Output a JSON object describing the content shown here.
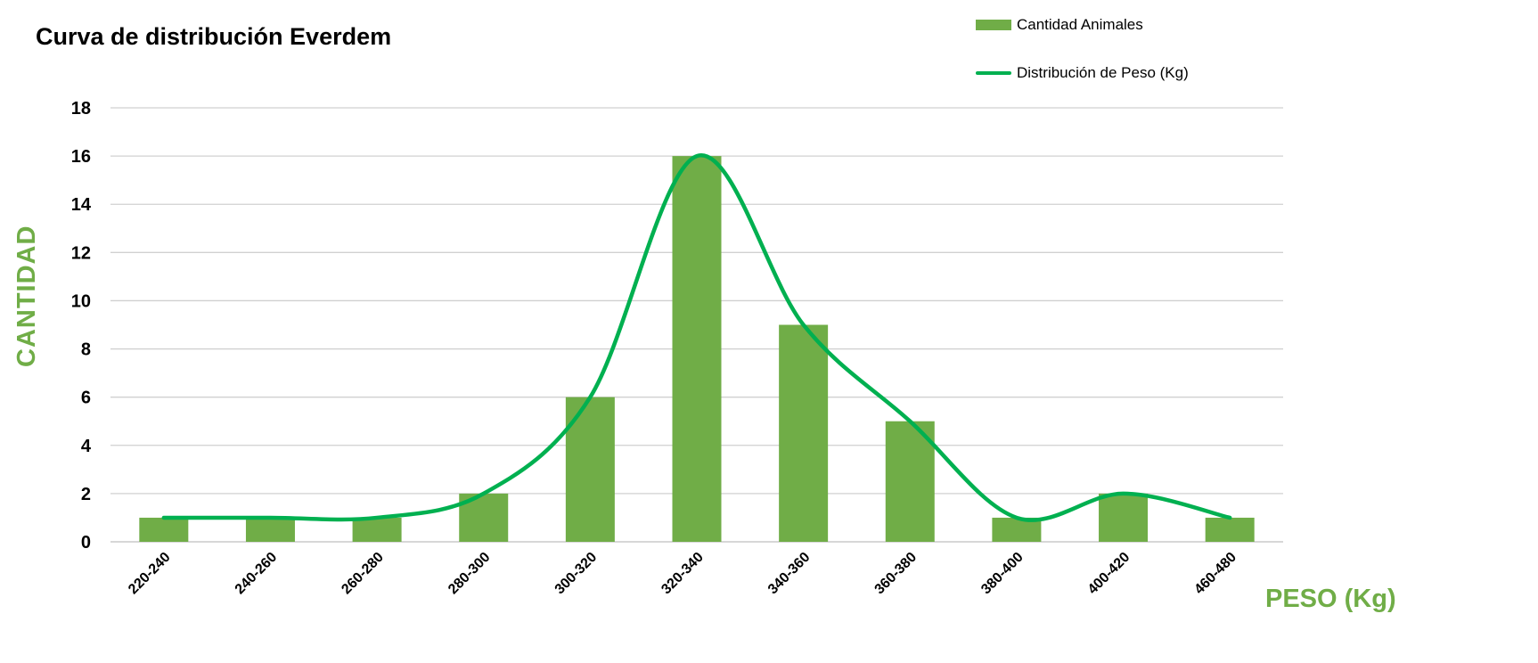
{
  "chart_data": {
    "type": "bar",
    "title": "Curva de distribución Everdem",
    "xlabel": "PESO (Kg)",
    "ylabel": "CANTIDAD",
    "categories": [
      "220-240",
      "240-260",
      "260-280",
      "280-300",
      "300-320",
      "320-340",
      "340-360",
      "360-380",
      "380-400",
      "400-420",
      "460-480"
    ],
    "series": [
      {
        "name": "Cantidad Animales",
        "type": "bar",
        "values": [
          1,
          1,
          1,
          2,
          6,
          16,
          9,
          5,
          1,
          2,
          1
        ],
        "color": "#70ad47"
      },
      {
        "name": "Distribución de Peso (Kg)",
        "type": "line",
        "smooth": true,
        "values": [
          1,
          1,
          1,
          2,
          6,
          16,
          9,
          5,
          1,
          2,
          1
        ],
        "color": "#00b050"
      }
    ],
    "ylim": [
      0,
      18
    ],
    "yticks": [
      0,
      2,
      4,
      6,
      8,
      10,
      12,
      14,
      16,
      18
    ],
    "grid": true,
    "legend_position": "top-right",
    "axis_title_color": "#70ad47"
  }
}
